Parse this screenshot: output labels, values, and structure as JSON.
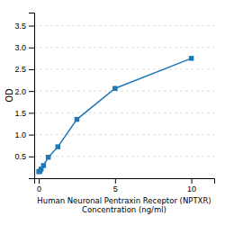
{
  "chart_data": {
    "type": "line",
    "x": [
      0.0,
      0.078,
      0.156,
      0.313,
      0.625,
      1.25,
      2.5,
      5.0,
      10.0
    ],
    "series": [
      {
        "values": [
          0.148,
          0.163,
          0.21,
          0.29,
          0.48,
          0.72,
          1.35,
          2.06,
          2.75
        ],
        "marker": "square"
      }
    ],
    "xlabel": "Human Neuronal Pentraxin Receptor (NPTXR)\nConcentration (ng/ml)",
    "ylabel": "OD",
    "xlim": [
      -0.3,
      11.5
    ],
    "ylim": [
      0,
      3.8
    ],
    "xticks": [
      0,
      5,
      10
    ],
    "yticks": [
      0.5,
      {
        "value": 1.0,
        "label": "1.0"
      },
      1.5,
      {
        "value": 2.0,
        "label": "2.0"
      },
      2.5,
      {
        "value": 3.0,
        "label": "3.0"
      },
      3.5
    ],
    "grid": true
  }
}
